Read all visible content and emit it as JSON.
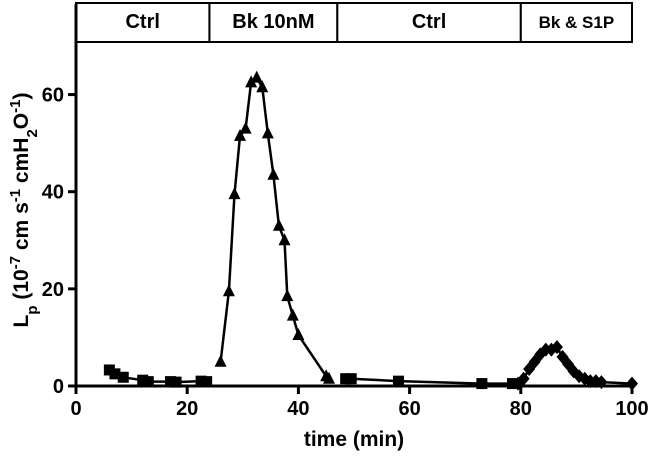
{
  "chart_data": {
    "type": "line",
    "xlabel": "time (min)",
    "ylabel": {
      "parts": [
        {
          "text": "L",
          "shift": "none"
        },
        {
          "text": "p",
          "shift": "sub"
        },
        {
          "text": " (10",
          "shift": "none"
        },
        {
          "text": "-7",
          "shift": "super"
        },
        {
          "text": " cm s",
          "shift": "none"
        },
        {
          "text": "-1",
          "shift": "super"
        },
        {
          "text": " cmH",
          "shift": "none"
        },
        {
          "text": "2",
          "shift": "sub"
        },
        {
          "text": "O",
          "shift": "none"
        },
        {
          "text": "-1",
          "shift": "super"
        },
        {
          "text": ")",
          "shift": "none"
        }
      ]
    },
    "xlim": [
      0,
      100
    ],
    "ylim": [
      0,
      70
    ],
    "xticks": [
      0,
      20,
      40,
      60,
      80,
      100
    ],
    "yticks": [
      0,
      20,
      40,
      60
    ],
    "grid": false,
    "phases": [
      {
        "label": "Ctrl",
        "start": 0,
        "end": 24
      },
      {
        "label": "Bk 10nM",
        "start": 24,
        "end": 47
      },
      {
        "label": "Ctrl",
        "start": 47,
        "end": 80
      },
      {
        "label": "Bk & S1P",
        "start": 80,
        "end": 100
      }
    ],
    "series": [
      {
        "marker": "square",
        "x": [
          6,
          7,
          8.5,
          12,
          13,
          17,
          18,
          22.5,
          23.5
        ],
        "y": [
          3.3,
          2.5,
          1.8,
          1.2,
          0.9,
          0.9,
          0.8,
          1.0,
          0.9
        ]
      },
      {
        "marker": "triangle",
        "x": [
          26,
          27.5,
          28.5,
          29.5,
          30.5,
          31.5,
          32.5,
          33.5,
          34.5,
          35.5,
          36.5,
          37.5,
          38,
          39,
          40,
          45,
          45.5
        ],
        "y": [
          5,
          19.5,
          39.5,
          51.5,
          53,
          62.5,
          63.5,
          61.5,
          52,
          43.5,
          33,
          30,
          18.5,
          14.5,
          10.5,
          2,
          1.5
        ]
      },
      {
        "marker": "square",
        "x": [
          48.5,
          49.5,
          58,
          73,
          78.5
        ],
        "y": [
          1.5,
          1.5,
          1.0,
          0.5,
          0.5
        ]
      },
      {
        "marker": "diamond",
        "x": [
          79.5,
          80.5,
          81.5,
          82.5,
          83.5,
          84.5,
          85.5,
          86.5,
          87.5,
          88.5,
          89.5,
          90.5,
          91.5,
          92.5,
          93.5,
          94.5,
          100
        ],
        "y": [
          0.5,
          1.5,
          3.5,
          5,
          6.5,
          7.5,
          7.5,
          8,
          6,
          4.5,
          3,
          2,
          1.5,
          1,
          1,
          0.8,
          0.5
        ]
      }
    ]
  }
}
